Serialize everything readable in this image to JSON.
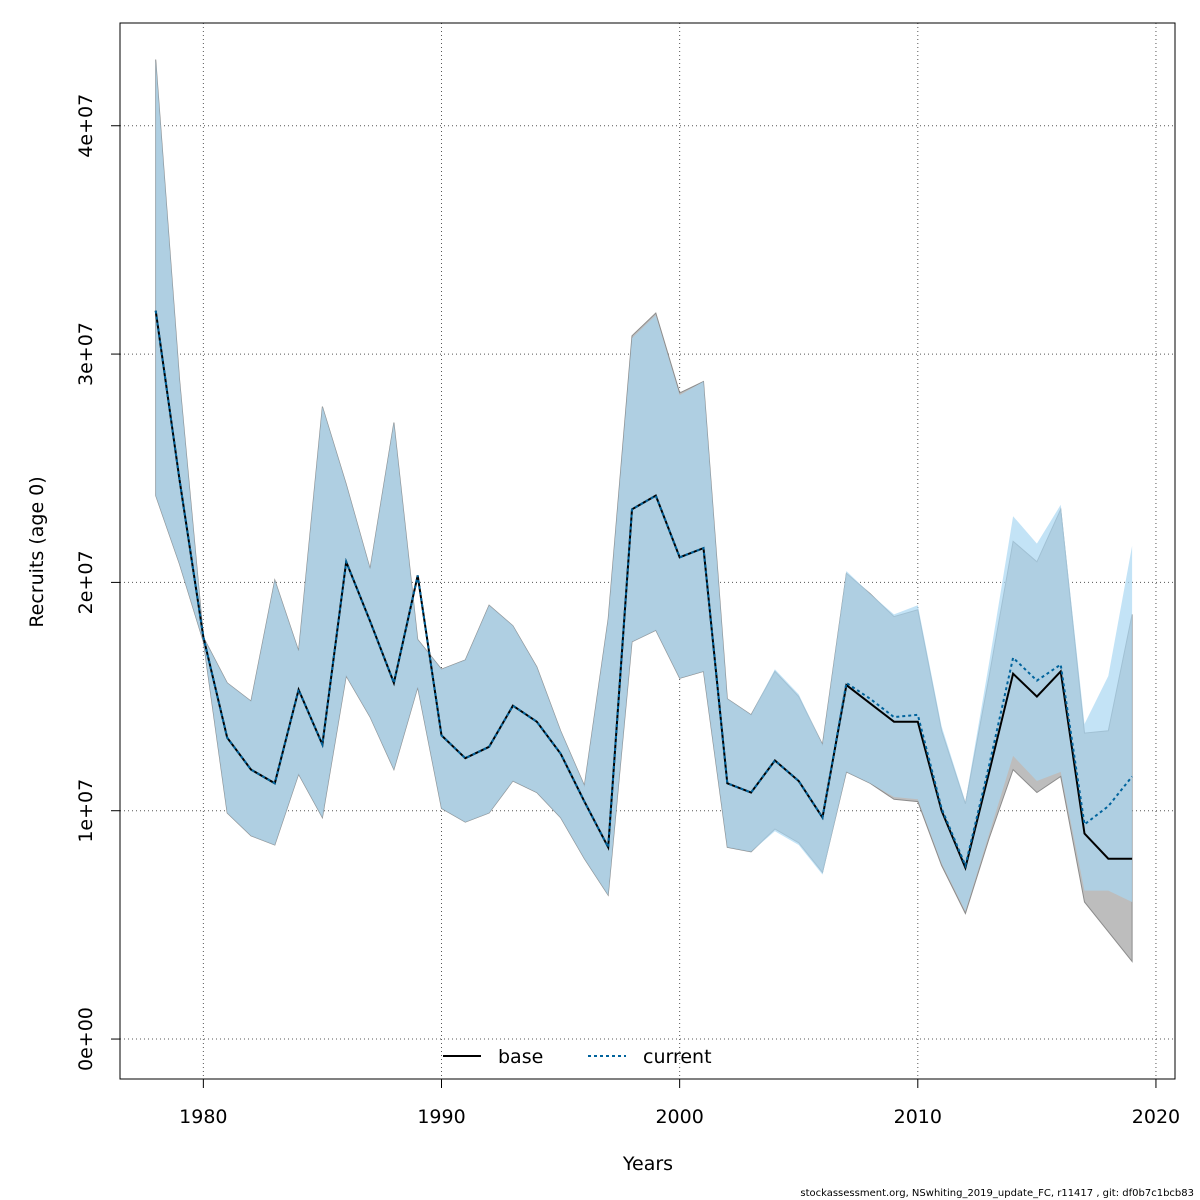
{
  "chart_data": {
    "type": "area",
    "xlabel": "Years",
    "ylabel": "Recruits (age 0)",
    "xlim": [
      1976.5,
      2020.8
    ],
    "ylim": [
      -1750000,
      44500000
    ],
    "x_ticks": [
      1980,
      1990,
      2000,
      2010,
      2020
    ],
    "x_tick_labels": [
      "1980",
      "1990",
      "2000",
      "2010",
      "2020"
    ],
    "y_ticks": [
      0,
      10000000,
      20000000,
      30000000,
      40000000
    ],
    "y_tick_labels": [
      "0e+00",
      "1e+07",
      "2e+07",
      "3e+07",
      "4e+07"
    ],
    "grid": true,
    "legend": {
      "position": "bottom",
      "labels": [
        "base",
        "current"
      ]
    },
    "x": [
      1978,
      1979,
      1980,
      1981,
      1982,
      1983,
      1984,
      1985,
      1986,
      1987,
      1988,
      1989,
      1990,
      1991,
      1992,
      1993,
      1994,
      1995,
      1996,
      1997,
      1998,
      1999,
      2000,
      2001,
      2002,
      2003,
      2004,
      2005,
      2006,
      2007,
      2008,
      2009,
      2010,
      2011,
      2012,
      2013,
      2014,
      2015,
      2016,
      2017,
      2018,
      2019
    ],
    "series": [
      {
        "name": "base",
        "color": "#000000",
        "band_color": "#bdbdbd",
        "values": [
          31900000,
          24500000,
          17600000,
          13200000,
          11800000,
          11200000,
          15300000,
          12900000,
          20900000,
          18300000,
          15600000,
          20300000,
          13300000,
          12300000,
          12800000,
          14600000,
          13900000,
          12500000,
          10400000,
          8400000,
          23200000,
          23800000,
          21100000,
          21500000,
          11200000,
          10800000,
          12200000,
          11300000,
          9700000,
          15500000,
          14700000,
          13900000,
          13900000,
          10000000,
          7500000,
          11700000,
          16000000,
          15000000,
          16100000,
          9000000,
          7900000,
          7900000
        ],
        "lower": [
          23800000,
          20800000,
          17400000,
          9900000,
          8900000,
          8500000,
          11600000,
          9700000,
          15900000,
          14100000,
          11800000,
          15400000,
          10100000,
          9500000,
          9900000,
          11300000,
          10800000,
          9700000,
          7900000,
          6300000,
          17400000,
          17900000,
          15800000,
          16100000,
          8400000,
          8200000,
          9200000,
          8600000,
          7300000,
          11700000,
          11200000,
          10500000,
          10400000,
          7600000,
          5500000,
          8800000,
          11800000,
          10800000,
          11500000,
          6000000,
          4700000,
          3400000
        ],
        "upper": [
          42900000,
          28900000,
          17600000,
          15600000,
          14800000,
          20100000,
          17000000,
          27700000,
          24300000,
          20600000,
          27000000,
          17500000,
          16200000,
          16600000,
          19000000,
          18100000,
          16300000,
          13500000,
          11100000,
          18400000,
          30800000,
          31800000,
          28300000,
          28800000,
          14900000,
          14200000,
          16100000,
          15000000,
          12900000,
          20400000,
          19500000,
          18500000,
          18800000,
          13500000,
          10300000,
          15900000,
          21800000,
          20900000,
          23200000,
          13400000,
          13500000,
          18600000
        ]
      },
      {
        "name": "current",
        "color": "#00639c",
        "band_color": "#aad7f2",
        "values": [
          31900000,
          24500000,
          17600000,
          13200000,
          11800000,
          11200000,
          15300000,
          12900000,
          20900000,
          18300000,
          15600000,
          20300000,
          13300000,
          12300000,
          12800000,
          14600000,
          13900000,
          12500000,
          10400000,
          8400000,
          23200000,
          23800000,
          21100000,
          21500000,
          11200000,
          10800000,
          12200000,
          11300000,
          9700000,
          15600000,
          14900000,
          14100000,
          14200000,
          10100000,
          7600000,
          12000000,
          16700000,
          15700000,
          16400000,
          9400000,
          10200000,
          11500000
        ],
        "lower": [
          23800000,
          20800000,
          17400000,
          9900000,
          8900000,
          8500000,
          11600000,
          9700000,
          15900000,
          14100000,
          11800000,
          15400000,
          10100000,
          9500000,
          9900000,
          11300000,
          10800000,
          9700000,
          7900000,
          6300000,
          17400000,
          17900000,
          15800000,
          16100000,
          8400000,
          8200000,
          9100000,
          8500000,
          7200000,
          11700000,
          11200000,
          10600000,
          10500000,
          7700000,
          5600000,
          9000000,
          12400000,
          11300000,
          11700000,
          6500000,
          6500000,
          6000000
        ],
        "upper": [
          42900000,
          28900000,
          17600000,
          15600000,
          14800000,
          20100000,
          17000000,
          27700000,
          24300000,
          20600000,
          27000000,
          17500000,
          16200000,
          16600000,
          19000000,
          18100000,
          16300000,
          13500000,
          11100000,
          18400000,
          30700000,
          31700000,
          28200000,
          28800000,
          14900000,
          14200000,
          16200000,
          15100000,
          12900000,
          20500000,
          19500000,
          18600000,
          19000000,
          13700000,
          10400000,
          16500000,
          22900000,
          21700000,
          23400000,
          13800000,
          15900000,
          21600000
        ]
      }
    ]
  },
  "footer": "stockassessment.org, NSwhiting_2019_update_FC, r11417 , git: df0b7c1bcb83"
}
